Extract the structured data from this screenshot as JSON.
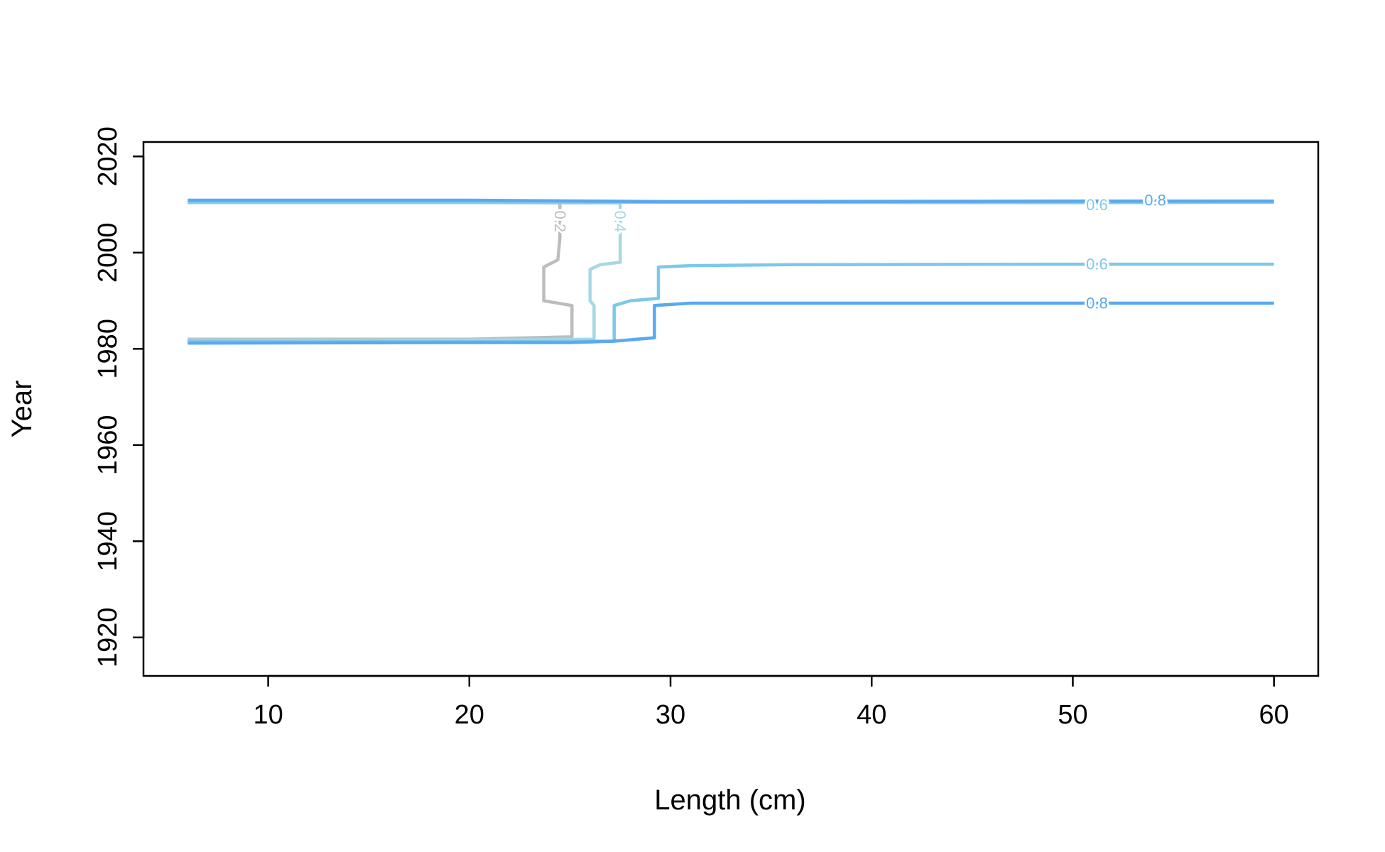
{
  "chart_data": {
    "type": "contour",
    "title": "",
    "xlabel": "Length (cm)",
    "ylabel": "Year",
    "xlim": [
      3.8,
      62.2
    ],
    "ylim": [
      1912,
      2023
    ],
    "x_ticks": [
      10,
      20,
      30,
      40,
      50,
      60
    ],
    "y_ticks": [
      1920,
      1940,
      1960,
      1980,
      2000,
      2020
    ],
    "grid": false,
    "legend": "none",
    "contours": [
      {
        "level": "0.2",
        "color": "#bdbdbd",
        "points": [
          [
            6,
            2010.5
          ],
          [
            20,
            2010.5
          ],
          [
            24.5,
            2010.3
          ],
          [
            24.5,
            2003
          ],
          [
            24.4,
            1998.5
          ],
          [
            23.7,
            1997
          ],
          [
            23.7,
            1990
          ],
          [
            25.1,
            1989
          ],
          [
            25.1,
            1982.5
          ],
          [
            20,
            1982
          ],
          [
            6,
            1982
          ]
        ],
        "labels": [
          {
            "text": "0.2",
            "x": 24.5,
            "y": 2006.5,
            "rotate": 90
          }
        ]
      },
      {
        "level": "0.4",
        "color": "#a6d8e4",
        "points": [
          [
            6,
            2010.4
          ],
          [
            20,
            2010.4
          ],
          [
            27.5,
            2010.3
          ],
          [
            27.5,
            2003
          ],
          [
            27.5,
            1998
          ],
          [
            26.5,
            1997.5
          ],
          [
            26.0,
            1996.5
          ],
          [
            26.0,
            1990
          ],
          [
            26.2,
            1989
          ],
          [
            26.2,
            1982
          ],
          [
            20,
            1981.8
          ],
          [
            6,
            1981.8
          ]
        ],
        "labels": [
          {
            "text": "0.4",
            "x": 27.5,
            "y": 2006.5,
            "rotate": 90
          }
        ]
      },
      {
        "level": "0.6",
        "color": "#82cbea",
        "points": [
          [
            6,
            2010.5
          ],
          [
            30,
            2010.5
          ],
          [
            51,
            2010.4
          ],
          [
            60,
            2010.5
          ]
        ],
        "labels": [
          {
            "text": "0.6",
            "x": 51.2,
            "y": 2009.9,
            "rotate": 0
          }
        ]
      },
      {
        "level": "0.6",
        "color": "#7dc8ea",
        "points": [
          [
            6,
            1981.6
          ],
          [
            20,
            1981.5
          ],
          [
            27.2,
            1981.6
          ],
          [
            27.2,
            1989
          ],
          [
            28,
            1990
          ],
          [
            29.4,
            1990.5
          ],
          [
            29.4,
            1997
          ],
          [
            31,
            1997.3
          ],
          [
            36,
            1997.5
          ],
          [
            50,
            1997.6
          ],
          [
            60,
            1997.6
          ]
        ],
        "labels": [
          {
            "text": "0.6",
            "x": 51.2,
            "y": 1997.6,
            "rotate": 0
          }
        ]
      },
      {
        "level": "0.8",
        "color": "#5aa9ef",
        "points": [
          [
            6,
            2010.9
          ],
          [
            20,
            2010.9
          ],
          [
            30,
            2010.6
          ],
          [
            50,
            2010.7
          ],
          [
            60,
            2010.7
          ]
        ],
        "labels": [
          {
            "text": "0.8",
            "x": 54.1,
            "y": 2010.9,
            "rotate": 0
          }
        ]
      },
      {
        "level": "0.8",
        "color": "#5aa9ef",
        "points": [
          [
            6,
            1981.2
          ],
          [
            20,
            1981.3
          ],
          [
            25,
            1981.3
          ],
          [
            27.2,
            1981.6
          ],
          [
            29.2,
            1982.3
          ],
          [
            29.2,
            1989
          ],
          [
            31,
            1989.5
          ],
          [
            50,
            1989.5
          ],
          [
            60,
            1989.5
          ]
        ],
        "labels": [
          {
            "text": "0.8",
            "x": 51.2,
            "y": 1989.5,
            "rotate": 0
          }
        ]
      }
    ]
  }
}
